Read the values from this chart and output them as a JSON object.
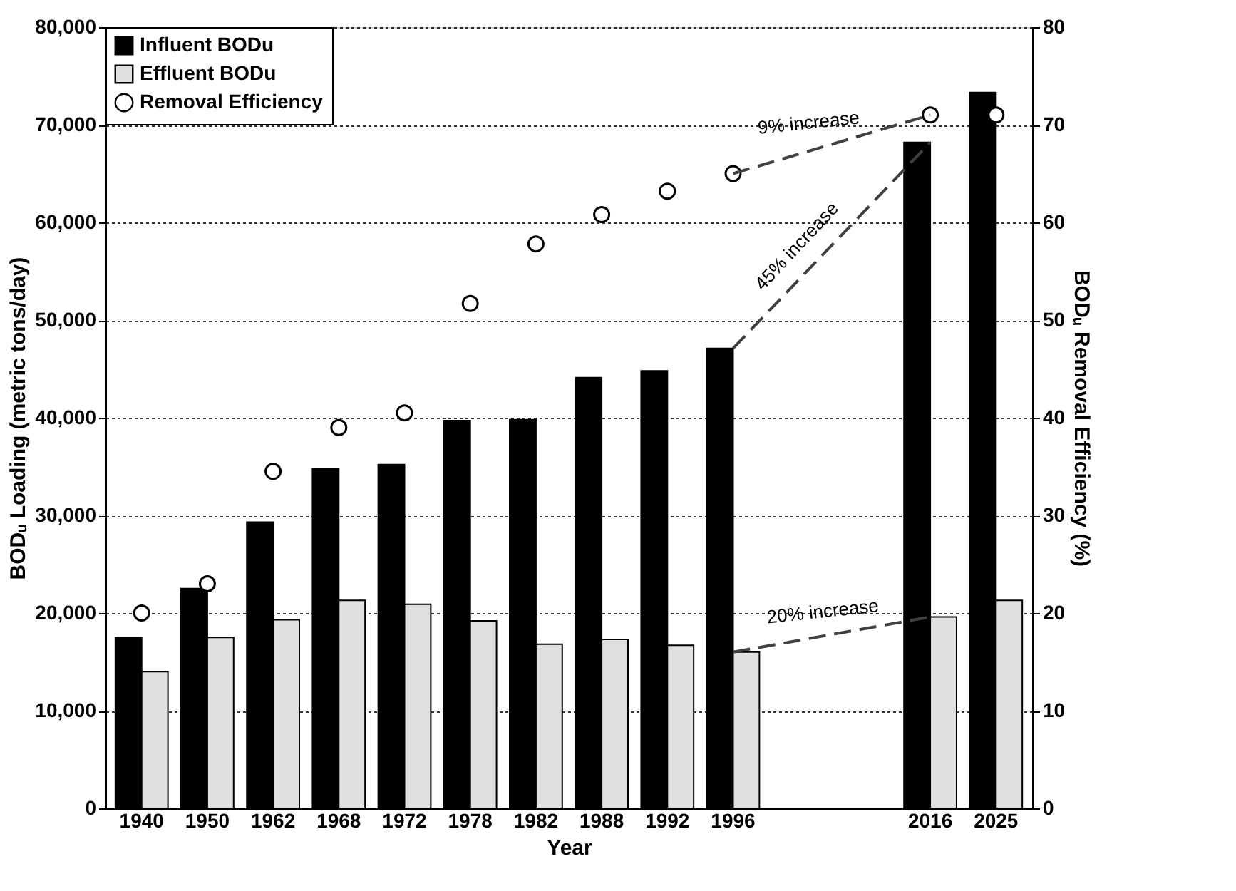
{
  "chart_data": {
    "type": "bar",
    "xlabel": "Year",
    "ylabel": "BODᵤ Loading (metric tons/day)",
    "y2label": "BODᵤ Removal Efficiency (%)",
    "categories": [
      "1940",
      "1950",
      "1962",
      "1968",
      "1972",
      "1978",
      "1982",
      "1988",
      "1992",
      "1996",
      null,
      null,
      "2016",
      "2025"
    ],
    "series": [
      {
        "name": "Influent BODu",
        "color": "#000000",
        "values": [
          17500,
          22500,
          29300,
          34800,
          35200,
          39700,
          39800,
          44100,
          44800,
          47100,
          null,
          null,
          68200,
          73300
        ]
      },
      {
        "name": "Effluent BODu",
        "color": "#e0e0e0",
        "values": [
          14000,
          17500,
          19300,
          21300,
          20900,
          19200,
          16800,
          17300,
          16700,
          16000,
          null,
          null,
          19600,
          21300
        ]
      },
      {
        "name": "Removal Efficiency",
        "type": "scatter",
        "axis": "y2",
        "color": "#ffffff",
        "marker": "circle",
        "values": [
          20,
          23,
          34.5,
          39,
          40.5,
          51.7,
          57.8,
          60.8,
          63.2,
          65,
          null,
          null,
          71,
          71
        ]
      },
      {
        "type": "line",
        "line_style": "dashed",
        "color": "#404040",
        "values": [
          null,
          null,
          null,
          null,
          null,
          null,
          null,
          null,
          null,
          47100,
          null,
          null,
          68200,
          null
        ]
      },
      {
        "type": "line",
        "line_style": "dashed",
        "color": "#404040",
        "values": [
          null,
          null,
          null,
          null,
          null,
          null,
          null,
          null,
          null,
          16000,
          null,
          null,
          19600,
          null
        ]
      },
      {
        "type": "line",
        "line_style": "dashed",
        "axis": "y2",
        "color": "#404040",
        "values": [
          null,
          null,
          null,
          null,
          null,
          null,
          null,
          null,
          null,
          65,
          null,
          null,
          71,
          null
        ]
      }
    ],
    "annotations": [
      "45% increase",
      "20% increase",
      "9% increase"
    ],
    "ylim": [
      0,
      80000
    ],
    "yticks": [
      {
        "value": 0,
        "label": "0"
      },
      {
        "value": 10000,
        "label": "10,000"
      },
      {
        "value": 20000,
        "label": "20,000"
      },
      {
        "value": 30000,
        "label": "30,000"
      },
      {
        "value": 40000,
        "label": "40,000"
      },
      {
        "value": 50000,
        "label": "50,000"
      },
      {
        "value": 60000,
        "label": "60,000"
      },
      {
        "value": 70000,
        "label": "70,000"
      },
      {
        "value": 80000,
        "label": "80,000"
      }
    ],
    "y2lim": [
      0,
      80
    ],
    "y2ticks": [
      0,
      10,
      20,
      30,
      40,
      50,
      60,
      70,
      80
    ],
    "grid": "y",
    "legend": "top left"
  }
}
